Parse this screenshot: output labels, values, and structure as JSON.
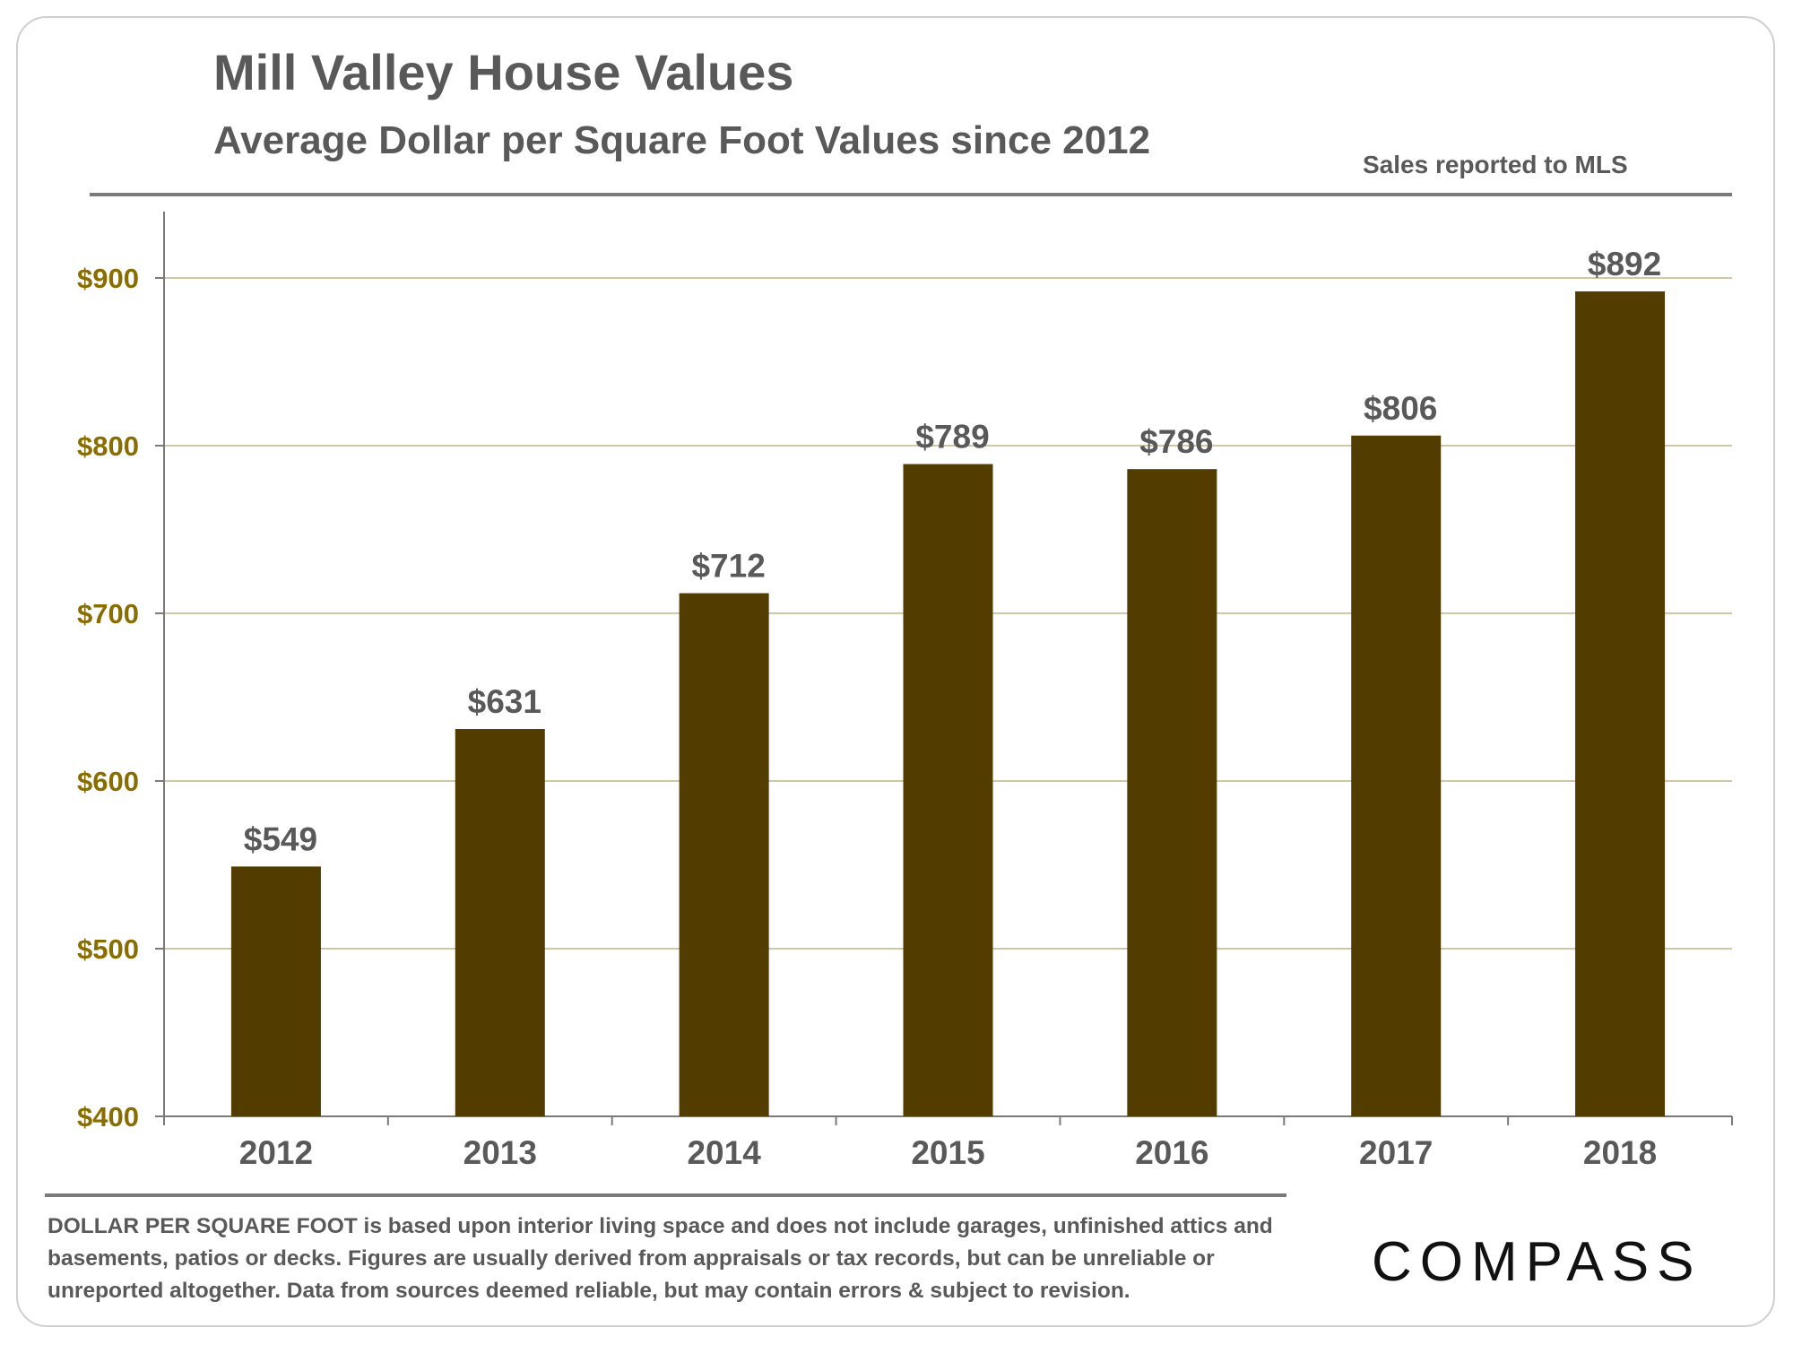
{
  "header": {
    "title": "Mill Valley House Values",
    "subtitle": "Average Dollar per Square Foot Values since 2012",
    "source_note": "Sales reported to MLS"
  },
  "footer": {
    "footnote": "DOLLAR PER SQUARE FOOT is based upon interior living space and does not include garages, unfinished attics and basements, patios or decks. Figures are usually derived from appraisals or tax records, but can be unreliable or unreported altogether. Data from sources deemed reliable, but may contain errors & subject to revision.",
    "logo_text": "COMPASS"
  },
  "colors": {
    "bar": "#533c00",
    "y_tick": "#8a6d00",
    "text": "#595959",
    "gridline": "#cfc8a4",
    "axis": "#7a7a7a"
  },
  "chart_data": {
    "type": "bar",
    "title": "Mill Valley House Values",
    "subtitle": "Average Dollar per Square Foot Values since 2012",
    "categories": [
      "2012",
      "2013",
      "2014",
      "2015",
      "2016",
      "2017",
      "2018"
    ],
    "values": [
      549,
      631,
      712,
      789,
      786,
      806,
      892
    ],
    "data_labels": [
      "$549",
      "$631",
      "$712",
      "$789",
      "$786",
      "$806",
      "$892"
    ],
    "y_ticks": [
      400,
      500,
      600,
      700,
      800,
      900
    ],
    "y_tick_labels": [
      "$400",
      "$500",
      "$600",
      "$700",
      "$800",
      "$900"
    ],
    "ylim": [
      400,
      900
    ],
    "xlabel": "",
    "ylabel": "",
    "grid": true
  }
}
